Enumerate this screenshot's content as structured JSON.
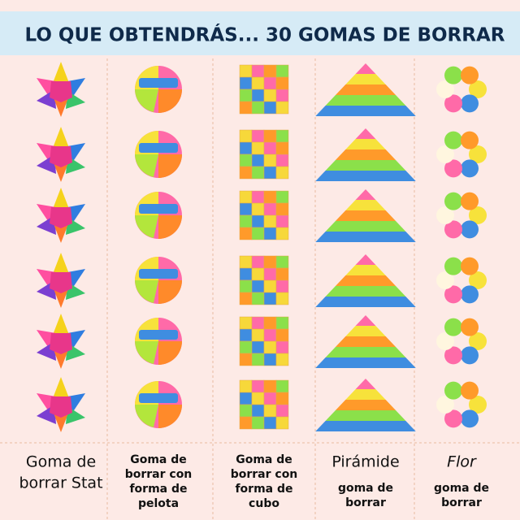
{
  "header": {
    "title": "LO QUE OBTENDRÁS... 30 GOMAS DE BORRAR"
  },
  "columns": [
    {
      "title": [
        "Goma de",
        "borrar Stat"
      ],
      "subtitle": []
    },
    {
      "title": [],
      "subtitle": [
        "Goma de",
        "borrar con",
        "forma de",
        "pelota"
      ]
    },
    {
      "title": [],
      "subtitle": [
        "Goma de",
        "borrar con",
        "forma de",
        "cubo"
      ]
    },
    {
      "title": [
        "Pirámide"
      ],
      "subtitle": [
        "goma de",
        "borrar"
      ]
    },
    {
      "title": [
        "Flor"
      ],
      "subtitle": [
        "goma de",
        "borrar"
      ]
    }
  ]
}
